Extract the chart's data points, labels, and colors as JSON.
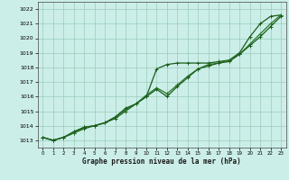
{
  "xlabel": "Graphe pression niveau de la mer (hPa)",
  "x": [
    0,
    1,
    2,
    3,
    4,
    5,
    6,
    7,
    8,
    9,
    10,
    11,
    12,
    13,
    14,
    15,
    16,
    17,
    18,
    19,
    20,
    21,
    22,
    23
  ],
  "line1": [
    1013.2,
    1013.0,
    1013.2,
    1013.5,
    1013.8,
    1014.0,
    1014.2,
    1014.5,
    1015.0,
    1015.5,
    1016.0,
    1017.9,
    1018.2,
    1018.3,
    1018.3,
    1018.3,
    1018.3,
    1018.4,
    1018.5,
    1019.0,
    1020.1,
    1021.0,
    1021.5,
    1021.6
  ],
  "line2": [
    1013.2,
    1013.0,
    1013.2,
    1013.5,
    1013.9,
    1014.0,
    1014.2,
    1014.6,
    1015.1,
    1015.5,
    1016.1,
    1016.6,
    1016.2,
    1016.8,
    1017.4,
    1017.9,
    1018.2,
    1018.3,
    1018.5,
    1018.9,
    1019.6,
    1020.3,
    1021.0,
    1021.6
  ],
  "line3": [
    1013.2,
    1013.0,
    1013.2,
    1013.6,
    1013.9,
    1014.0,
    1014.2,
    1014.6,
    1015.2,
    1015.5,
    1016.0,
    1016.5,
    1016.0,
    1016.7,
    1017.3,
    1017.9,
    1018.1,
    1018.3,
    1018.4,
    1018.9,
    1019.5,
    1020.1,
    1020.8,
    1021.5
  ],
  "ylim": [
    1012.5,
    1022.5
  ],
  "yticks": [
    1013,
    1014,
    1015,
    1016,
    1017,
    1018,
    1019,
    1020,
    1021,
    1022
  ],
  "xticks": [
    0,
    1,
    2,
    3,
    4,
    5,
    6,
    7,
    8,
    9,
    10,
    11,
    12,
    13,
    14,
    15,
    16,
    17,
    18,
    19,
    20,
    21,
    22,
    23
  ],
  "line_color_dark": "#1a5c1a",
  "line_color_mid": "#2d7a2d",
  "bg_color": "#cceee8",
  "grid_color": "#99ccbb",
  "marker": "+",
  "marker_size": 3,
  "line_width": 0.9
}
